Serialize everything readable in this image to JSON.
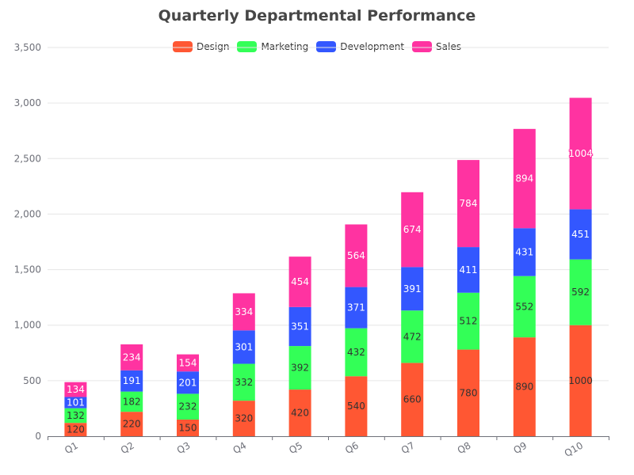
{
  "chart_data": {
    "type": "bar",
    "stacked": true,
    "title": "Quarterly Departmental Performance",
    "categories": [
      "Q1",
      "Q2",
      "Q3",
      "Q4",
      "Q5",
      "Q6",
      "Q7",
      "Q8",
      "Q9",
      "Q10"
    ],
    "series": [
      {
        "name": "Design",
        "color": "#ff5733",
        "values": [
          120,
          220,
          150,
          320,
          420,
          540,
          660,
          780,
          890,
          1000
        ]
      },
      {
        "name": "Marketing",
        "color": "#33ff57",
        "values": [
          132,
          182,
          232,
          332,
          392,
          432,
          472,
          512,
          552,
          592
        ]
      },
      {
        "name": "Development",
        "color": "#3357ff",
        "values": [
          101,
          191,
          201,
          301,
          351,
          371,
          391,
          411,
          431,
          451
        ]
      },
      {
        "name": "Sales",
        "color": "#ff33a1",
        "values": [
          134,
          234,
          154,
          334,
          454,
          564,
          674,
          784,
          894,
          1004
        ]
      }
    ],
    "ylim": [
      0,
      3500
    ],
    "yticks": [
      "0",
      "500",
      "1,000",
      "1,500",
      "2,000",
      "2,500",
      "3,000",
      "3,500"
    ],
    "grid": true,
    "legend_position": "top-center"
  }
}
